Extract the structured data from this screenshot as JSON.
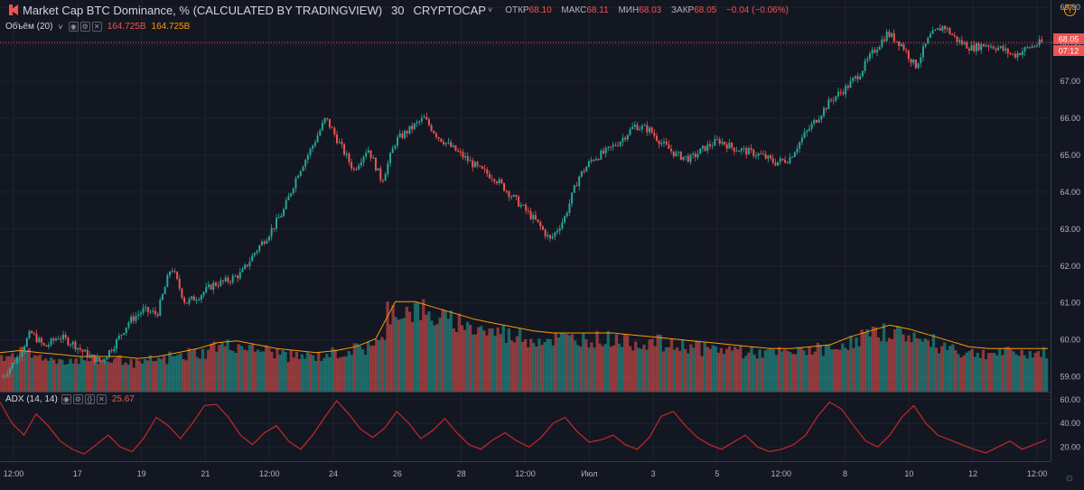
{
  "header": {
    "title": "Market Cap BTC Dominance, % (CALCULATED BY TRADINGVIEW)",
    "interval": "30",
    "exchange": "CRYPTOCAP",
    "open_label": "ОТКР",
    "open_value": "68.10",
    "high_label": "МАКС",
    "high_value": "68.11",
    "low_label": "МИН",
    "low_value": "68.03",
    "close_label": "ЗАКР",
    "close_value": "68.05",
    "change": "−0.04 (−0.06%)"
  },
  "volume_study": {
    "label": "Объём (20)",
    "value1": "164.725B",
    "value2": "164.725B"
  },
  "adx_study": {
    "label": "ADX (14, 14)",
    "value": "25.67"
  },
  "price_badge": {
    "price": "68.05",
    "countdown": "07:12"
  },
  "colors": {
    "up": "#26a69a",
    "down": "#ef5350",
    "ma": "#ff9800",
    "adx": "#c62828",
    "bg": "#131722",
    "grid": "#1e222d"
  },
  "chart_data": [
    {
      "type": "line",
      "series": [
        {
          "x": [
            "16",
            "16.5",
            "17",
            "17.5",
            "18",
            "18.5",
            "19",
            "19.5",
            "20",
            "20.5",
            "21",
            "21.5",
            "22",
            "22.5",
            "23",
            "23.5",
            "24",
            "24.5",
            "25",
            "25.5",
            "26",
            "26.3",
            "26.6",
            "26.8",
            "27",
            "27.3",
            "27.6",
            "27.8",
            "28",
            "28.3",
            "28.6",
            "29",
            "29.3",
            "29.6",
            "30",
            "30.3",
            "30.6",
            "Июл",
            "1.3",
            "1.6",
            "2",
            "2.3",
            "2.6",
            "3",
            "3.3",
            "3.6",
            "4",
            "4.3",
            "4.6",
            "5",
            "5.3",
            "5.6",
            "6",
            "6.3",
            "6.6",
            "7",
            "7.3",
            "7.6",
            "8",
            "8.3",
            "8.6",
            "9",
            "9.3",
            "9.6",
            "10",
            "10.3",
            "10.6",
            "11",
            "11.3",
            "11.6",
            "12",
            "12.3",
            "12.6",
            "13",
            "13.3"
          ],
          "values": [
            59.0,
            59.5,
            60.2,
            59.8,
            60.1,
            59.9,
            59.6,
            59.4,
            59.9,
            60.5,
            60.8,
            60.7,
            62.0,
            61.0,
            61.2,
            61.5,
            61.6,
            61.8,
            62.4,
            62.9,
            63.5,
            64.5,
            65.2,
            66.0,
            65.3,
            64.6,
            65.2,
            64.3,
            65.4,
            65.7,
            66.0,
            65.5,
            65.2,
            64.9,
            64.6,
            64.4,
            64.0,
            63.6,
            63.2,
            62.7,
            63.3,
            64.4,
            64.9,
            65.1,
            65.4,
            65.8,
            65.7,
            65.3,
            65.0,
            64.9,
            65.2,
            65.4,
            65.2,
            65.1,
            65.0,
            64.8,
            64.9,
            65.5,
            66.0,
            66.5,
            66.8,
            67.2,
            67.8,
            68.3,
            68.0,
            67.4,
            68.2,
            68.5,
            68.1,
            67.9,
            68.0,
            67.9,
            67.7,
            67.9,
            68.05
          ]
        }
      ],
      "xlabels": [
        "12:00",
        "17",
        "19",
        "21",
        "12:00",
        "24",
        "26",
        "28",
        "12:00",
        "Июл",
        "3",
        "5",
        "12:00",
        "8",
        "10",
        "12",
        "12:00"
      ],
      "ylim": [
        58.6,
        69.2
      ],
      "yticks": [
        59.0,
        60.0,
        61.0,
        62.0,
        63.0,
        64.0,
        65.0,
        66.0,
        67.0,
        68.0,
        69.0
      ],
      "grid": true
    },
    {
      "type": "bar",
      "name": "Объём (20)",
      "values": [
        1.0,
        1.1,
        1.0,
        0.9,
        0.9,
        0.9,
        0.9,
        0.8,
        0.9,
        1.0,
        1.1,
        1.3,
        1.3,
        1.2,
        1.1,
        1.0,
        1.0,
        1.1,
        1.2,
        1.4,
        2.3,
        2.3,
        2.1,
        2.0,
        1.8,
        1.7,
        1.6,
        1.5,
        1.5,
        1.5,
        1.5,
        1.5,
        1.4,
        1.4,
        1.3,
        1.3,
        1.2,
        1.2,
        1.1,
        1.1,
        1.1,
        1.2,
        1.2,
        1.4,
        1.6,
        1.7,
        1.6,
        1.4,
        1.3,
        1.1,
        1.1,
        1.1,
        1.1,
        1.1
      ],
      "ma": [
        1.0,
        1.05,
        1.0,
        0.95,
        0.9,
        0.9,
        0.9,
        0.85,
        0.9,
        1.0,
        1.1,
        1.25,
        1.3,
        1.2,
        1.1,
        1.05,
        1.0,
        1.05,
        1.15,
        1.35,
        2.3,
        2.3,
        2.15,
        2.0,
        1.85,
        1.75,
        1.65,
        1.55,
        1.5,
        1.5,
        1.5,
        1.5,
        1.45,
        1.4,
        1.35,
        1.3,
        1.25,
        1.2,
        1.15,
        1.1,
        1.1,
        1.15,
        1.2,
        1.4,
        1.55,
        1.7,
        1.6,
        1.45,
        1.3,
        1.15,
        1.1,
        1.1,
        1.1,
        1.1
      ]
    },
    {
      "type": "line",
      "name": "ADX (14, 14)",
      "values": [
        58,
        40,
        30,
        48,
        38,
        25,
        18,
        14,
        22,
        30,
        20,
        16,
        28,
        45,
        38,
        27,
        40,
        55,
        56,
        45,
        30,
        22,
        32,
        38,
        25,
        18,
        30,
        45,
        59,
        48,
        35,
        28,
        36,
        50,
        40,
        27,
        34,
        44,
        32,
        22,
        18,
        26,
        32,
        25,
        20,
        28,
        40,
        45,
        33,
        24,
        26,
        30,
        22,
        18,
        28,
        46,
        50,
        38,
        28,
        22,
        18,
        24,
        30,
        20,
        16,
        18,
        22,
        30,
        46,
        58,
        52,
        38,
        25,
        20,
        30,
        45,
        55,
        40,
        30,
        26,
        22,
        18,
        15,
        20,
        25,
        18,
        22,
        26
      ],
      "ylim": [
        8,
        66
      ],
      "yticks": [
        20.0,
        40.0,
        60.0
      ]
    }
  ]
}
